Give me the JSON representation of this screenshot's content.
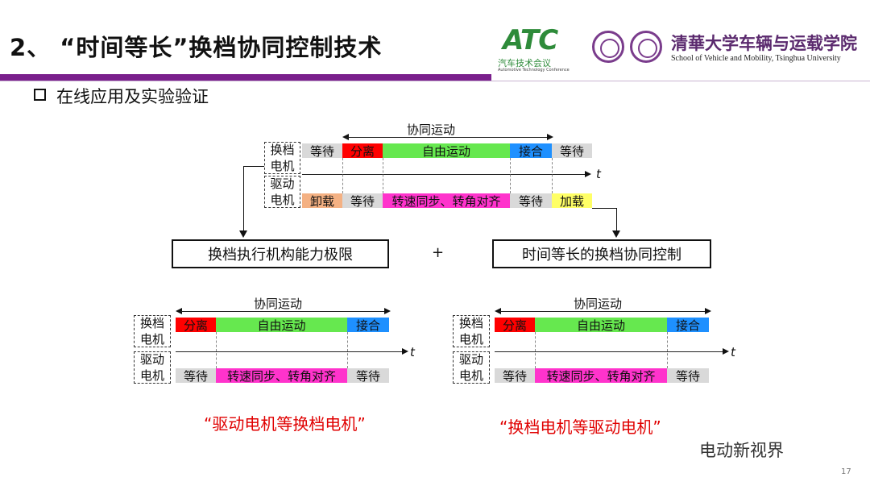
{
  "header": {
    "title": "2、 “时间等长”换档协同控制技术",
    "logo_atc": "ATC",
    "logo_atc_sub": "汽车技术会议",
    "logo_atc_tiny": "Automotive Technology Conference",
    "uni_name": "清華大学车辆与运载学院",
    "uni_eng": "School of Vehicle and Mobility, Tsinghua University"
  },
  "bullet": "在线应用及实验验证",
  "colors": {
    "accent": "#7a1f8c",
    "separate": "#ff0000",
    "free_motion": "#66e84f",
    "engage": "#1e90ff",
    "unload": "#f4b183",
    "load": "#ffff66",
    "sync": "#ff33cc",
    "wait": "#d9d9d9",
    "caption": "#e00000"
  },
  "top_diagram": {
    "span_label": "协同运动",
    "row1_label": [
      "换档",
      "电机"
    ],
    "row2_label": [
      "驱动",
      "电机"
    ],
    "row1": [
      "等待",
      "分离",
      "自由运动",
      "接合",
      "等待"
    ],
    "row2": [
      "卸载",
      "等待",
      "转速同步、转角对齐",
      "等待",
      "加载"
    ],
    "t": "t"
  },
  "boxes": {
    "left": "换档执行机构能力极限",
    "plus": "+",
    "right": "时间等长的换档协同控制"
  },
  "bottom_left": {
    "span_label": "协同运动",
    "row1_label": [
      "换档",
      "电机"
    ],
    "row2_label": [
      "驱动",
      "电机"
    ],
    "row1": [
      "分离",
      "自由运动",
      "接合"
    ],
    "row2": [
      "等待",
      "转速同步、转角对齐",
      "等待"
    ],
    "t": "t",
    "caption": "“驱动电机等换档电机”"
  },
  "bottom_right": {
    "span_label": "协同运动",
    "row1_label": [
      "换档",
      "电机"
    ],
    "row2_label": [
      "驱动",
      "电机"
    ],
    "row1": [
      "分离",
      "自由运动",
      "接合"
    ],
    "row2": [
      "等待",
      "转速同步、转角对齐",
      "等待"
    ],
    "t": "t",
    "caption": "“换档电机等驱动电机”"
  },
  "footer": {
    "wechat": "电动新视界",
    "page": "17"
  }
}
